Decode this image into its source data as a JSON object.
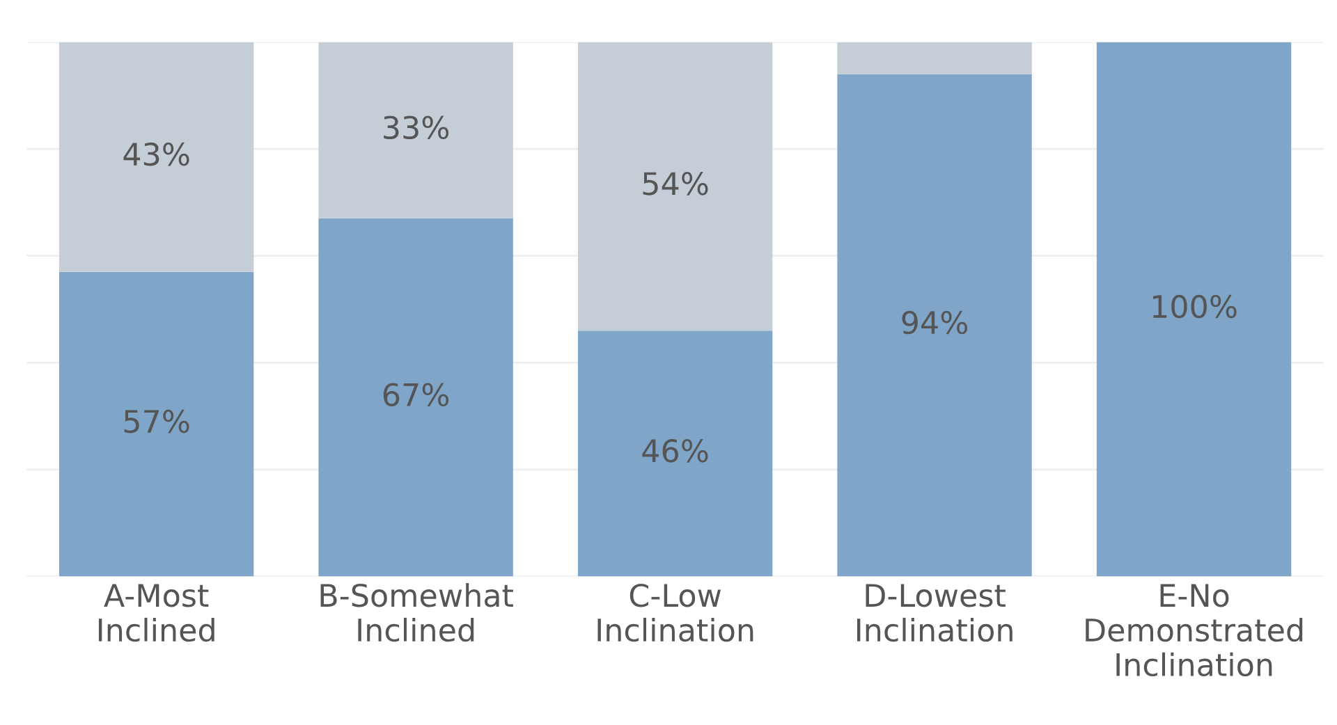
{
  "chart_data": {
    "type": "bar",
    "stacked": true,
    "categories": [
      "A-Most Inclined",
      "B-Somewhat Inclined",
      "C-Low Inclination",
      "D-Lowest Inclination",
      "E-No Demonstrated Inclination"
    ],
    "series": [
      {
        "color": "#7fa6c9",
        "values": [
          57,
          67,
          46,
          94,
          100
        ],
        "value_labels": [
          "57%",
          "67%",
          "46%",
          "94%",
          "100%"
        ]
      },
      {
        "color": "#c5cdd6",
        "values": [
          43,
          33,
          54,
          6,
          0
        ],
        "value_labels": [
          "43%",
          "33%",
          "54%",
          null,
          null
        ]
      }
    ],
    "ylim": [
      0,
      100
    ],
    "yticks": [
      {
        "value": 0,
        "label": null
      },
      {
        "value": 20,
        "label": null
      },
      {
        "value": 40,
        "label": null
      },
      {
        "value": 60,
        "label": null
      },
      {
        "value": 80,
        "label": null
      },
      {
        "value": 100,
        "label": null
      }
    ],
    "grid": "y",
    "tick_labels": "x"
  }
}
